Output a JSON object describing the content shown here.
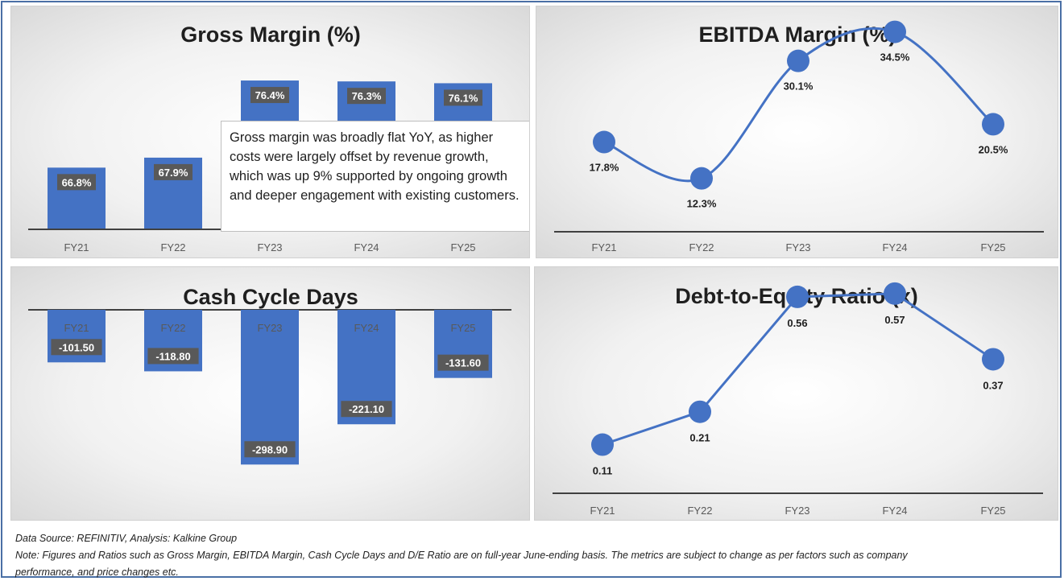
{
  "chart_data": [
    {
      "type": "bar",
      "title": "Gross Margin (%)",
      "categories": [
        "FY21",
        "FY22",
        "FY23",
        "FY24",
        "FY25"
      ],
      "values": [
        66.8,
        67.9,
        76.4,
        76.3,
        76.1
      ],
      "labels": [
        "66.8%",
        "67.9%",
        "76.4%",
        "76.3%",
        "76.1%"
      ],
      "ylim": [
        60,
        78
      ],
      "grid": false,
      "legend": "none",
      "annotation": "Gross margin was broadly flat YoY, as higher costs were largely offset by revenue growth, which was up 9% supported by ongoing growth and deeper engagement with existing customers.",
      "color": "#4472c4"
    },
    {
      "type": "line",
      "title": "EBITDA Margin (%)",
      "categories": [
        "FY21",
        "FY22",
        "FY23",
        "FY24",
        "FY25"
      ],
      "values": [
        17.8,
        12.3,
        30.1,
        34.5,
        20.5
      ],
      "labels": [
        "17.8%",
        "12.3%",
        "30.1%",
        "34.5%",
        "20.5%"
      ],
      "ylim": [
        0,
        40
      ],
      "smooth": true,
      "grid": false,
      "legend": "none",
      "color": "#4472c4"
    },
    {
      "type": "bar",
      "title": "Cash Cycle Days",
      "categories": [
        "FY21",
        "FY22",
        "FY23",
        "FY24",
        "FY25"
      ],
      "values": [
        -101.5,
        -118.8,
        -298.9,
        -221.1,
        -131.6
      ],
      "labels": [
        "-101.50",
        "-118.80",
        "-298.90",
        "-221.10",
        "-131.60"
      ],
      "ylim": [
        -300,
        0
      ],
      "grid": false,
      "legend": "none",
      "color": "#4472c4"
    },
    {
      "type": "line",
      "title": "Debt-to-Equity Ratio (x)",
      "categories": [
        "FY21",
        "FY22",
        "FY23",
        "FY24",
        "FY25"
      ],
      "values": [
        0.11,
        0.21,
        0.56,
        0.57,
        0.37
      ],
      "labels": [
        "0.11",
        "0.21",
        "0.56",
        "0.57",
        "0.37"
      ],
      "ylim": [
        0,
        0.6
      ],
      "smooth": false,
      "grid": false,
      "legend": "none",
      "color": "#4472c4"
    }
  ],
  "footer": {
    "source": "Data Source: REFINITIV, Analysis: Kalkine Group",
    "note": "Note: Figures and Ratios such as Gross Margin, EBITDA Margin, Cash Cycle Days and D/E Ratio are on full-year June-ending basis. The metrics are subject to change as per factors such as company",
    "note_cont": "performance, and price changes etc."
  }
}
